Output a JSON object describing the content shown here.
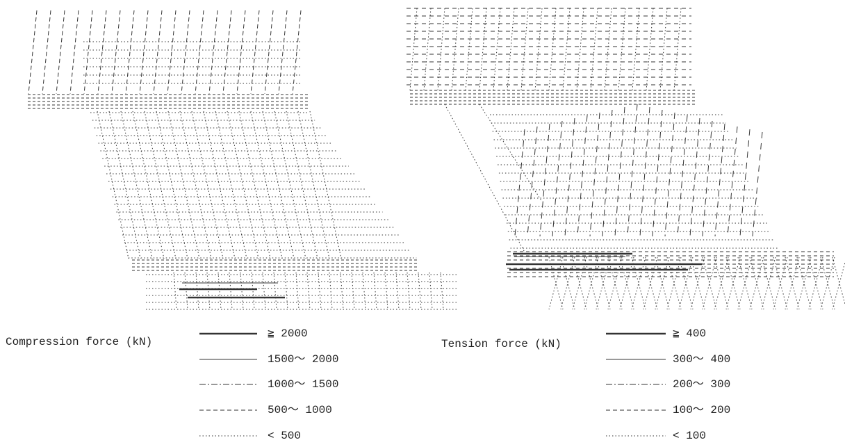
{
  "left_legend": {
    "title": "Compression force (kN)",
    "items": [
      "≧ 2000",
      "1500〜 2000",
      "1000〜 1500",
      "500〜 1000",
      "< 500"
    ]
  },
  "right_legend": {
    "title": "Tension force (kN)",
    "items": [
      "≧ 400",
      "300〜 400",
      "200〜 300",
      "100〜 200",
      "< 100"
    ]
  }
}
